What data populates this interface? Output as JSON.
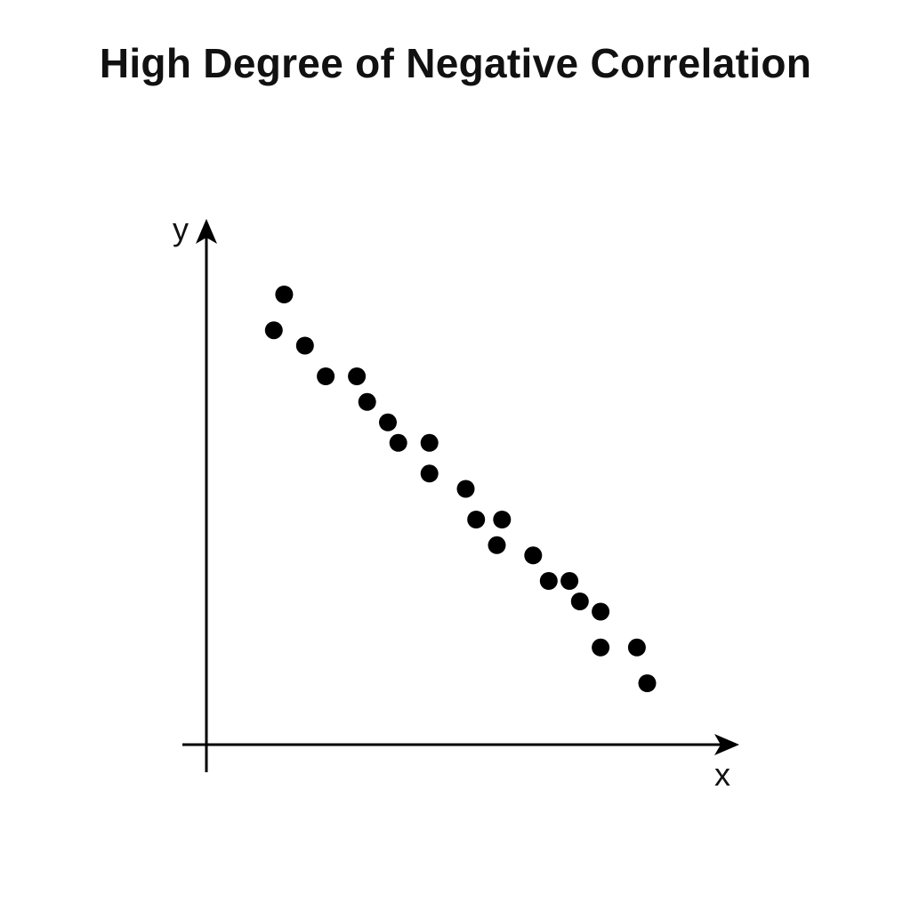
{
  "chart_data": {
    "type": "scatter",
    "title": "High Degree of Negative Correlation",
    "xlabel": "x",
    "ylabel": "y",
    "xlim": [
      0,
      100
    ],
    "ylim": [
      0,
      100
    ],
    "grid": false,
    "legend": "none",
    "marker_color": "#000000",
    "axis_color": "#000000",
    "tick_labels": false,
    "points": [
      {
        "x": 15,
        "y": 88
      },
      {
        "x": 13,
        "y": 81
      },
      {
        "x": 19,
        "y": 78
      },
      {
        "x": 23,
        "y": 72
      },
      {
        "x": 29,
        "y": 72
      },
      {
        "x": 31,
        "y": 67
      },
      {
        "x": 35,
        "y": 63
      },
      {
        "x": 37,
        "y": 59
      },
      {
        "x": 43,
        "y": 59
      },
      {
        "x": 43,
        "y": 53
      },
      {
        "x": 50,
        "y": 50
      },
      {
        "x": 52,
        "y": 44
      },
      {
        "x": 57,
        "y": 44
      },
      {
        "x": 56,
        "y": 39
      },
      {
        "x": 63,
        "y": 37
      },
      {
        "x": 66,
        "y": 32
      },
      {
        "x": 70,
        "y": 32
      },
      {
        "x": 72,
        "y": 28
      },
      {
        "x": 76,
        "y": 26
      },
      {
        "x": 76,
        "y": 19
      },
      {
        "x": 83,
        "y": 19
      },
      {
        "x": 85,
        "y": 12
      }
    ]
  }
}
